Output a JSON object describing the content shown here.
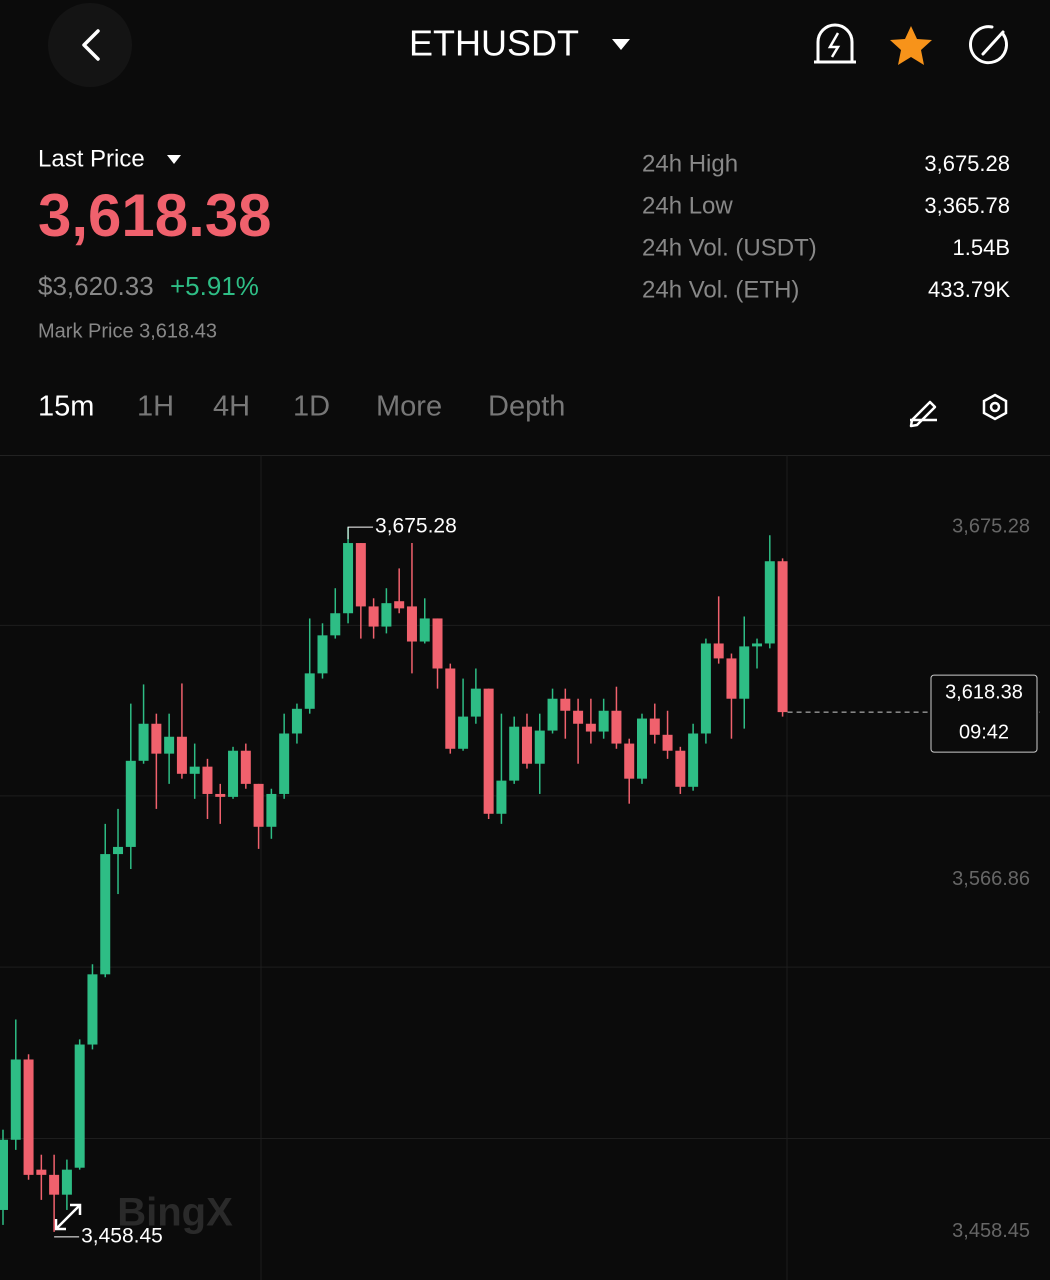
{
  "header": {
    "title": "ETHUSDT"
  },
  "price": {
    "label": "Last Price",
    "last": "3,618.38",
    "usd": "$3,620.33",
    "change": "+5.91%",
    "mark": "Mark Price 3,618.43"
  },
  "stats": [
    {
      "label": "24h High",
      "value": "3,675.28"
    },
    {
      "label": "24h Low",
      "value": "3,365.78"
    },
    {
      "label": "24h Vol. (USDT)",
      "value": "1.54B"
    },
    {
      "label": "24h Vol. (ETH)",
      "value": "433.79K"
    }
  ],
  "tabs": [
    "15m",
    "1H",
    "4H",
    "1D",
    "More",
    "Depth"
  ],
  "watermark": "BingX",
  "chart_data": {
    "type": "candlestick",
    "categories": [
      null,
      null,
      null,
      null,
      null,
      null,
      null,
      null,
      null,
      null,
      null,
      null,
      null,
      null,
      null,
      null,
      null,
      null,
      null,
      null,
      null,
      null,
      null,
      null,
      null,
      null,
      null,
      null,
      null,
      null,
      null,
      null,
      null,
      null,
      null,
      null,
      null,
      null,
      null,
      null,
      null,
      null,
      null,
      null,
      null,
      null,
      null,
      null,
      null,
      null,
      null,
      null,
      null,
      null,
      null,
      null,
      null,
      null,
      null,
      null,
      null,
      null
    ],
    "open": [
      3465.2,
      3486.8,
      3511.5,
      3477.6,
      3476.0,
      3469.9,
      3478.2,
      3516.1,
      3537.7,
      3574.7,
      3576.9,
      3603.4,
      3614.8,
      3605.6,
      3610.8,
      3599.4,
      3601.6,
      3593.2,
      3592.3,
      3606.5,
      3596.3,
      3583.1,
      3593.2,
      3611.8,
      3619.4,
      3630.3,
      3642.0,
      3648.8,
      3670.4,
      3650.9,
      3644.7,
      3652.5,
      3650.9,
      3640.1,
      3647.2,
      3631.8,
      3607.1,
      3617.0,
      3625.6,
      3587.1,
      3597.3,
      3613.9,
      3602.5,
      3612.7,
      3622.5,
      3618.8,
      3614.8,
      3612.4,
      3618.8,
      3608.7,
      3597.9,
      3616.4,
      3611.4,
      3606.5,
      3595.4,
      3611.8,
      3639.5,
      3634.9,
      3622.5,
      3638.6,
      3639.5,
      3664.8
    ],
    "high": [
      3489.9,
      3523.8,
      3513.1,
      3482.2,
      3482.2,
      3480.7,
      3517.7,
      3540.8,
      3584.0,
      3588.6,
      3621.0,
      3626.9,
      3617.9,
      3617.9,
      3627.2,
      3608.7,
      3604.0,
      3596.3,
      3607.7,
      3608.7,
      3596.3,
      3594.8,
      3617.9,
      3621.0,
      3647.2,
      3645.7,
      3656.5,
      3675.28,
      3670.4,
      3653.4,
      3656.5,
      3662.6,
      3670.4,
      3653.4,
      3647.2,
      3633.3,
      3628.7,
      3631.8,
      3625.6,
      3617.9,
      3617.0,
      3617.9,
      3617.9,
      3625.6,
      3625.6,
      3622.5,
      3622.5,
      3622.5,
      3626.2,
      3610.2,
      3617.9,
      3621.0,
      3618.8,
      3607.7,
      3614.8,
      3641.0,
      3654.0,
      3636.4,
      3647.8,
      3641.0,
      3672.8,
      3665.7
    ],
    "low": [
      3460.6,
      3483.7,
      3474.5,
      3468.3,
      3458.45,
      3465.2,
      3477.6,
      3514.6,
      3536.8,
      3562.4,
      3570.1,
      3602.5,
      3588.6,
      3596.3,
      3597.9,
      3591.7,
      3585.5,
      3584.0,
      3591.7,
      3594.8,
      3576.3,
      3579.4,
      3591.7,
      3608.7,
      3617.9,
      3628.7,
      3641.0,
      3645.7,
      3641.0,
      3641.0,
      3642.6,
      3648.8,
      3630.3,
      3639.5,
      3625.6,
      3605.6,
      3606.5,
      3614.8,
      3585.5,
      3584.0,
      3596.3,
      3601.0,
      3593.2,
      3611.8,
      3610.2,
      3602.5,
      3608.7,
      3610.2,
      3607.1,
      3590.2,
      3596.3,
      3608.7,
      3604.0,
      3593.2,
      3594.2,
      3608.7,
      3633.3,
      3610.2,
      3613.3,
      3631.8,
      3638.0,
      3617.0
    ],
    "close": [
      3486.8,
      3511.5,
      3476.0,
      3476.0,
      3469.9,
      3477.6,
      3516.1,
      3537.7,
      3574.7,
      3576.9,
      3603.4,
      3614.8,
      3605.6,
      3610.8,
      3599.4,
      3601.6,
      3593.2,
      3592.3,
      3606.5,
      3596.3,
      3583.1,
      3593.2,
      3611.8,
      3619.4,
      3630.3,
      3642.0,
      3648.8,
      3670.4,
      3650.9,
      3644.7,
      3651.9,
      3650.3,
      3640.1,
      3647.2,
      3631.8,
      3607.1,
      3617.0,
      3625.6,
      3587.1,
      3597.3,
      3613.9,
      3602.5,
      3612.7,
      3622.5,
      3618.8,
      3614.8,
      3612.4,
      3618.8,
      3608.7,
      3597.9,
      3616.4,
      3611.4,
      3606.5,
      3595.4,
      3611.8,
      3639.5,
      3634.9,
      3622.5,
      3638.6,
      3639.5,
      3664.8,
      3618.38
    ],
    "up_color": "#2ebd85",
    "down_color": "#f0616d",
    "ylim": [
      3443.65,
      3697.49
    ],
    "yticks": [
      {
        "value": 3675.28,
        "label": "3,675.28"
      },
      {
        "value": 3566.86,
        "label": "3,566.86"
      },
      {
        "value": 3458.45,
        "label": "3,458.45"
      }
    ],
    "ygrid": [
      3645.05,
      3592.6,
      3539.9,
      3487.2
    ],
    "max_label": {
      "value": 3675.28,
      "label": "3,675.28"
    },
    "min_label": {
      "value": 3458.45,
      "label": "3,458.45"
    },
    "last_price": {
      "value": 3618.38,
      "label": "3,618.38",
      "countdown": "09:42"
    }
  }
}
